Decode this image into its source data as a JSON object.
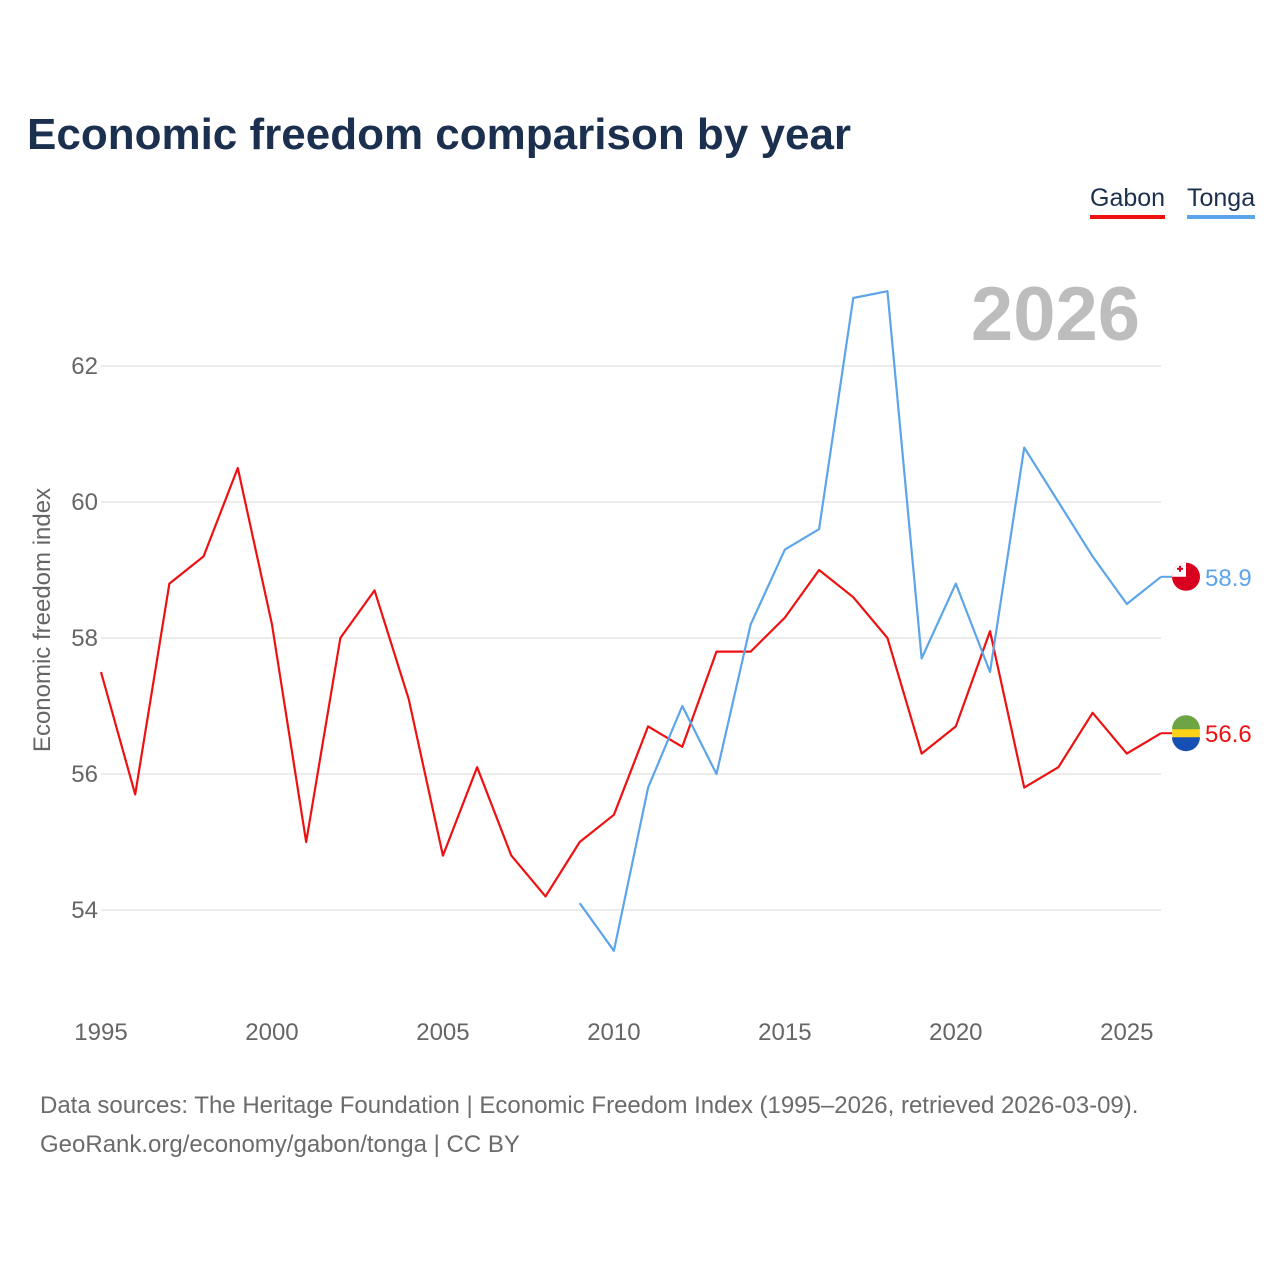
{
  "chart_data": {
    "type": "line",
    "title": "Economic freedom comparison by year",
    "ylabel": "Economic freedom index",
    "xlabel": "",
    "big_year": "2026",
    "xlim": [
      1995,
      2026
    ],
    "ylim": [
      52.7,
      64.2
    ],
    "xticks": [
      "1995",
      "2000",
      "2005",
      "2010",
      "2015",
      "2020",
      "2025"
    ],
    "yticks": [
      "54",
      "56",
      "58",
      "60",
      "62"
    ],
    "grid": true,
    "legend_position": "top-right",
    "series": [
      {
        "name": "Gabon",
        "color": "#ee1111",
        "end_label": "56.6",
        "x": [
          1995,
          1996,
          1997,
          1998,
          1999,
          2000,
          2001,
          2002,
          2003,
          2004,
          2005,
          2006,
          2007,
          2008,
          2009,
          2010,
          2011,
          2012,
          2013,
          2014,
          2015,
          2016,
          2017,
          2018,
          2019,
          2020,
          2021,
          2022,
          2023,
          2024,
          2025,
          2026
        ],
        "values": [
          57.5,
          55.7,
          58.8,
          59.2,
          60.5,
          58.2,
          55.0,
          58.0,
          58.7,
          57.1,
          54.8,
          56.1,
          54.8,
          54.2,
          55.0,
          55.4,
          56.7,
          56.4,
          57.8,
          57.8,
          58.3,
          59.0,
          58.6,
          58.0,
          56.3,
          56.7,
          58.1,
          55.8,
          56.1,
          56.9,
          56.3,
          56.6
        ]
      },
      {
        "name": "Tonga",
        "color": "#5da5ea",
        "end_label": "58.9",
        "x": [
          2009,
          2010,
          2011,
          2012,
          2013,
          2014,
          2015,
          2016,
          2017,
          2018,
          2019,
          2020,
          2021,
          2022,
          2023,
          2024,
          2025,
          2026
        ],
        "values": [
          54.1,
          53.4,
          55.8,
          57.0,
          56.0,
          58.2,
          59.3,
          59.6,
          63.0,
          63.1,
          57.7,
          58.8,
          57.5,
          60.8,
          60.0,
          59.2,
          58.5,
          58.9
        ]
      }
    ]
  },
  "source_line1": "Data sources: The Heritage Foundation | Economic Freedom Index (1995–2026, retrieved 2026-03-09).",
  "source_line2": "GeoRank.org/economy/gabon/tonga | CC BY"
}
